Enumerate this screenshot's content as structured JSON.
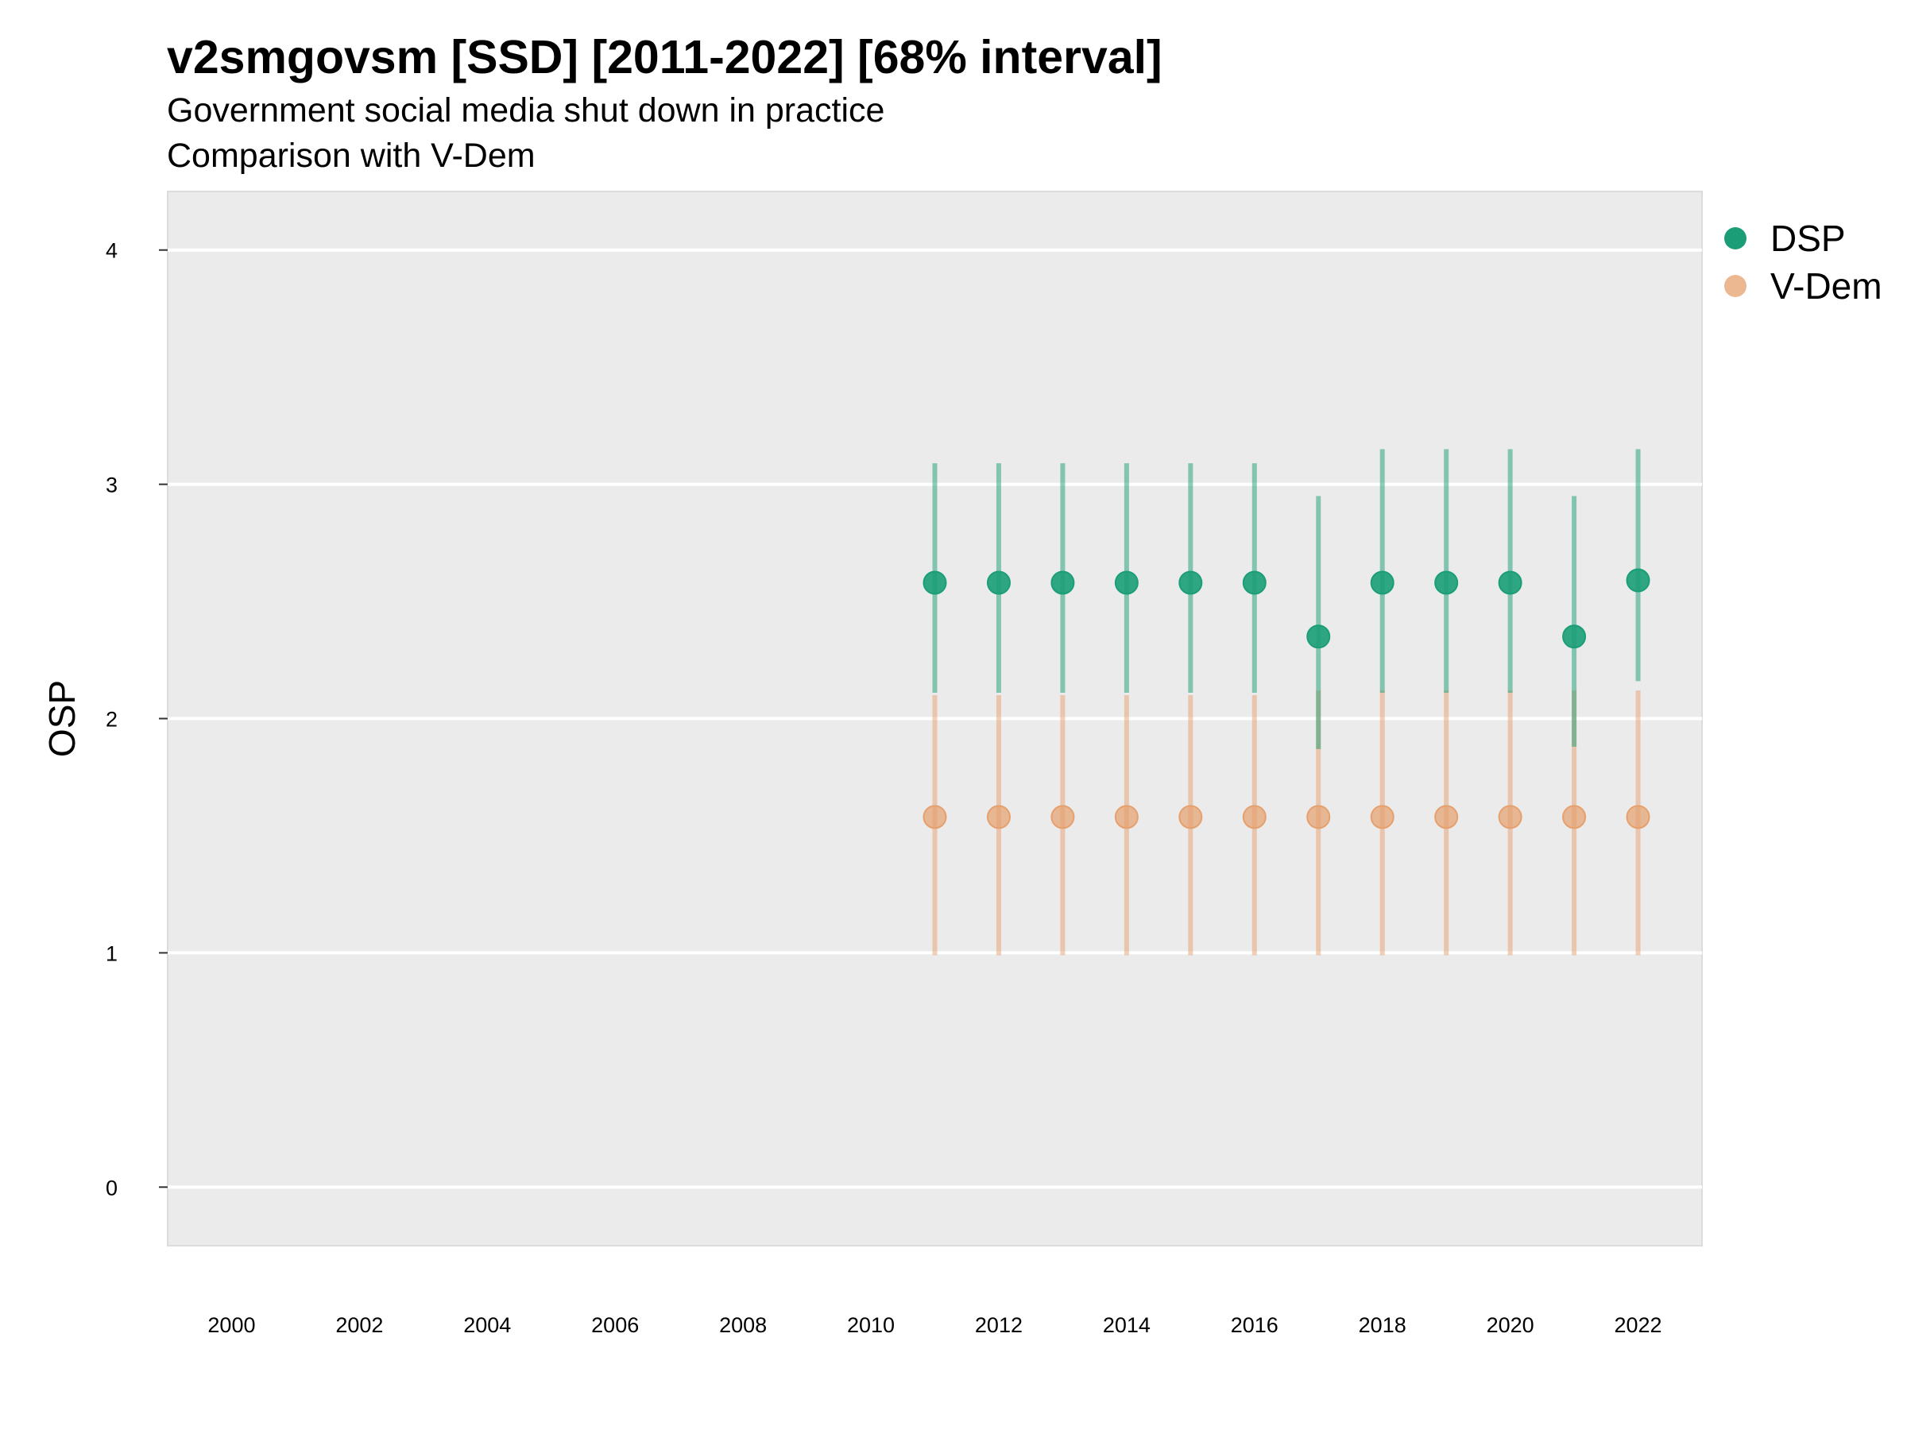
{
  "title": "v2smgovsm [SSD] [2011-2022] [68% interval]",
  "subtitle": "Government social media shut down in practice",
  "subtitle2": "Comparison with V-Dem",
  "chart_data": {
    "type": "scatter",
    "title": "v2smgovsm [SSD] [2011-2022] [68% interval]",
    "subtitle": "Government social media shut down in practice",
    "subtitle2": "Comparison with V-Dem",
    "xlabel": "",
    "ylabel": "OSP",
    "xlim": [
      1999,
      2023
    ],
    "ylim": [
      -0.25,
      4.25
    ],
    "x_ticks": [
      "2000",
      "2002",
      "2004",
      "2006",
      "2008",
      "2010",
      "2012",
      "2014",
      "2016",
      "2018",
      "2020",
      "2022"
    ],
    "y_ticks": [
      "0",
      "1",
      "2",
      "3",
      "4"
    ],
    "grid": true,
    "legend": "right",
    "series": [
      {
        "name": "DSP",
        "color": "#1b9e77",
        "x": [
          2011,
          2012,
          2013,
          2014,
          2015,
          2016,
          2017,
          2018,
          2019,
          2020,
          2021,
          2022
        ],
        "y": [
          2.58,
          2.58,
          2.58,
          2.58,
          2.58,
          2.58,
          2.35,
          2.58,
          2.58,
          2.58,
          2.35,
          2.59
        ],
        "lower": [
          2.11,
          2.11,
          2.11,
          2.11,
          2.11,
          2.11,
          1.87,
          2.11,
          2.11,
          2.11,
          1.88,
          2.16
        ],
        "upper": [
          3.09,
          3.09,
          3.09,
          3.09,
          3.09,
          3.09,
          2.95,
          3.15,
          3.15,
          3.15,
          2.95,
          3.15
        ]
      },
      {
        "name": "V-Dem",
        "color": "#e6a06e",
        "x": [
          2011,
          2012,
          2013,
          2014,
          2015,
          2016,
          2017,
          2018,
          2019,
          2020,
          2021,
          2022
        ],
        "y": [
          1.58,
          1.58,
          1.58,
          1.58,
          1.58,
          1.58,
          1.58,
          1.58,
          1.58,
          1.58,
          1.58,
          1.58
        ],
        "lower": [
          0.99,
          0.99,
          0.99,
          0.99,
          0.99,
          0.99,
          0.99,
          0.99,
          0.99,
          0.99,
          0.99,
          0.99
        ],
        "upper": [
          2.1,
          2.1,
          2.1,
          2.1,
          2.1,
          2.1,
          2.12,
          2.12,
          2.12,
          2.12,
          2.12,
          2.12
        ]
      }
    ]
  }
}
